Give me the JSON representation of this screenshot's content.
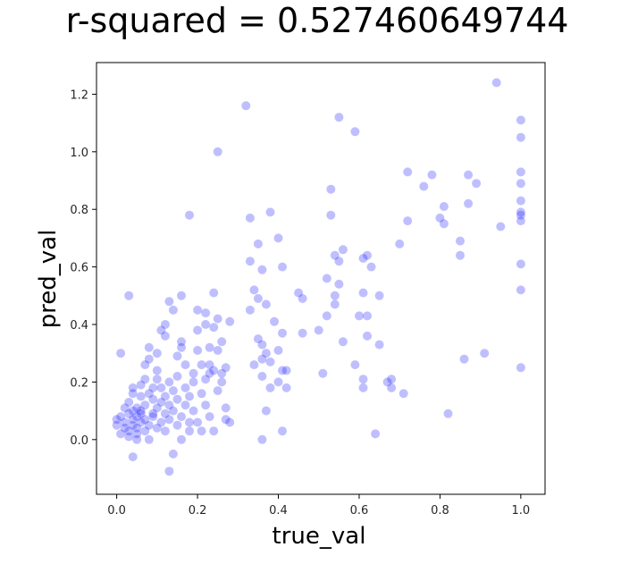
{
  "chart_data": {
    "type": "scatter",
    "title": "r-squared = 0.527460649744",
    "xlabel": "true_val",
    "ylabel": "pred_val",
    "xlim": [
      -0.05,
      1.06
    ],
    "ylim": [
      -0.19,
      1.31
    ],
    "xticks": [
      0.0,
      0.2,
      0.4,
      0.6,
      0.8,
      1.0
    ],
    "xtick_labels": [
      "0.0",
      "0.2",
      "0.4",
      "0.6",
      "0.8",
      "1.0"
    ],
    "yticks": [
      0.0,
      0.2,
      0.4,
      0.6,
      0.8,
      1.0,
      1.2
    ],
    "ytick_labels": [
      "0.0",
      "0.2",
      "0.4",
      "0.6",
      "0.8",
      "1.0",
      "1.2"
    ],
    "grid": false,
    "point_color": "#0000ff",
    "point_alpha": 0.25,
    "series": [
      {
        "points": [
          [
            0.01,
            0.3
          ],
          [
            0.03,
            0.5
          ],
          [
            0.0,
            0.07
          ],
          [
            0.0,
            0.05
          ],
          [
            0.01,
            0.02
          ],
          [
            0.01,
            0.08
          ],
          [
            0.02,
            0.04
          ],
          [
            0.02,
            0.11
          ],
          [
            0.02,
            0.06
          ],
          [
            0.03,
            0.03
          ],
          [
            0.03,
            0.01
          ],
          [
            0.03,
            0.09
          ],
          [
            0.03,
            0.13
          ],
          [
            0.04,
            0.07
          ],
          [
            0.04,
            0.1
          ],
          [
            0.04,
            0.05
          ],
          [
            0.04,
            0.18
          ],
          [
            0.04,
            0.16
          ],
          [
            0.04,
            -0.06
          ],
          [
            0.05,
            0.08
          ],
          [
            0.05,
            0.02
          ],
          [
            0.05,
            0.11
          ],
          [
            0.05,
            0.04
          ],
          [
            0.05,
            0.0
          ],
          [
            0.06,
            0.06
          ],
          [
            0.06,
            0.09
          ],
          [
            0.06,
            0.15
          ],
          [
            0.06,
            0.19
          ],
          [
            0.06,
            0.1
          ],
          [
            0.07,
            0.03
          ],
          [
            0.07,
            0.07
          ],
          [
            0.07,
            0.12
          ],
          [
            0.07,
            0.21
          ],
          [
            0.07,
            0.26
          ],
          [
            0.08,
            0.28
          ],
          [
            0.08,
            0.32
          ],
          [
            0.08,
            0.05
          ],
          [
            0.08,
            0.0
          ],
          [
            0.08,
            0.16
          ],
          [
            0.09,
            0.09
          ],
          [
            0.09,
            0.14
          ],
          [
            0.09,
            0.18
          ],
          [
            0.09,
            0.08
          ],
          [
            0.1,
            0.11
          ],
          [
            0.1,
            0.21
          ],
          [
            0.1,
            0.24
          ],
          [
            0.1,
            0.04
          ],
          [
            0.1,
            0.3
          ],
          [
            0.11,
            0.06
          ],
          [
            0.11,
            0.13
          ],
          [
            0.11,
            0.18
          ],
          [
            0.11,
            0.38
          ],
          [
            0.12,
            0.36
          ],
          [
            0.12,
            0.4
          ],
          [
            0.12,
            0.09
          ],
          [
            0.12,
            0.15
          ],
          [
            0.12,
            0.03
          ],
          [
            0.13,
            0.48
          ],
          [
            0.13,
            0.2
          ],
          [
            0.13,
            0.12
          ],
          [
            0.13,
            -0.11
          ],
          [
            0.13,
            0.07
          ],
          [
            0.14,
            0.45
          ],
          [
            0.14,
            0.17
          ],
          [
            0.14,
            0.1
          ],
          [
            0.14,
            -0.05
          ],
          [
            0.15,
            0.05
          ],
          [
            0.15,
            0.14
          ],
          [
            0.15,
            0.22
          ],
          [
            0.15,
            0.29
          ],
          [
            0.16,
            0.5
          ],
          [
            0.16,
            0.32
          ],
          [
            0.16,
            0.34
          ],
          [
            0.16,
            0.08
          ],
          [
            0.16,
            0.0
          ],
          [
            0.17,
            0.12
          ],
          [
            0.17,
            0.18
          ],
          [
            0.17,
            0.26
          ],
          [
            0.18,
            0.78
          ],
          [
            0.18,
            0.06
          ],
          [
            0.18,
            0.15
          ],
          [
            0.18,
            0.03
          ],
          [
            0.19,
            0.23
          ],
          [
            0.19,
            0.2
          ],
          [
            0.19,
            0.1
          ],
          [
            0.2,
            0.31
          ],
          [
            0.2,
            0.38
          ],
          [
            0.2,
            0.45
          ],
          [
            0.2,
            0.06
          ],
          [
            0.21,
            0.16
          ],
          [
            0.21,
            0.26
          ],
          [
            0.21,
            0.03
          ],
          [
            0.22,
            0.44
          ],
          [
            0.22,
            0.4
          ],
          [
            0.22,
            0.12
          ],
          [
            0.22,
            0.21
          ],
          [
            0.23,
            0.32
          ],
          [
            0.23,
            0.26
          ],
          [
            0.23,
            0.08
          ],
          [
            0.23,
            0.23
          ],
          [
            0.24,
            0.51
          ],
          [
            0.24,
            0.39
          ],
          [
            0.24,
            0.24
          ],
          [
            0.24,
            0.03
          ],
          [
            0.25,
            1.0
          ],
          [
            0.25,
            0.42
          ],
          [
            0.25,
            0.31
          ],
          [
            0.25,
            0.17
          ],
          [
            0.26,
            0.34
          ],
          [
            0.26,
            0.2
          ],
          [
            0.26,
            0.23
          ],
          [
            0.27,
            0.11
          ],
          [
            0.27,
            0.25
          ],
          [
            0.27,
            0.07
          ],
          [
            0.28,
            0.41
          ],
          [
            0.28,
            0.06
          ],
          [
            0.32,
            1.16
          ],
          [
            0.33,
            0.77
          ],
          [
            0.33,
            0.62
          ],
          [
            0.33,
            0.45
          ],
          [
            0.34,
            0.52
          ],
          [
            0.34,
            0.26
          ],
          [
            0.35,
            0.68
          ],
          [
            0.35,
            0.49
          ],
          [
            0.35,
            0.35
          ],
          [
            0.36,
            0.59
          ],
          [
            0.36,
            0.33
          ],
          [
            0.36,
            0.22
          ],
          [
            0.36,
            0.28
          ],
          [
            0.36,
            0.0
          ],
          [
            0.37,
            0.47
          ],
          [
            0.37,
            0.3
          ],
          [
            0.37,
            0.1
          ],
          [
            0.38,
            0.79
          ],
          [
            0.38,
            0.27
          ],
          [
            0.38,
            0.18
          ],
          [
            0.39,
            0.41
          ],
          [
            0.4,
            0.7
          ],
          [
            0.4,
            0.2
          ],
          [
            0.4,
            0.31
          ],
          [
            0.41,
            0.6
          ],
          [
            0.41,
            0.37
          ],
          [
            0.41,
            0.24
          ],
          [
            0.41,
            0.03
          ],
          [
            0.42,
            0.18
          ],
          [
            0.42,
            0.24
          ],
          [
            0.45,
            0.51
          ],
          [
            0.46,
            0.49
          ],
          [
            0.46,
            0.37
          ],
          [
            0.5,
            0.38
          ],
          [
            0.51,
            0.23
          ],
          [
            0.52,
            0.56
          ],
          [
            0.52,
            0.43
          ],
          [
            0.53,
            0.87
          ],
          [
            0.53,
            0.78
          ],
          [
            0.54,
            0.64
          ],
          [
            0.54,
            0.5
          ],
          [
            0.54,
            0.47
          ],
          [
            0.55,
            1.12
          ],
          [
            0.55,
            0.62
          ],
          [
            0.55,
            0.54
          ],
          [
            0.56,
            0.66
          ],
          [
            0.56,
            0.34
          ],
          [
            0.59,
            1.07
          ],
          [
            0.59,
            0.26
          ],
          [
            0.6,
            0.43
          ],
          [
            0.61,
            0.63
          ],
          [
            0.61,
            0.51
          ],
          [
            0.61,
            0.21
          ],
          [
            0.61,
            0.18
          ],
          [
            0.62,
            0.43
          ],
          [
            0.62,
            0.64
          ],
          [
            0.62,
            0.36
          ],
          [
            0.63,
            0.6
          ],
          [
            0.64,
            0.02
          ],
          [
            0.65,
            0.33
          ],
          [
            0.65,
            0.5
          ],
          [
            0.67,
            0.2
          ],
          [
            0.68,
            0.21
          ],
          [
            0.68,
            0.18
          ],
          [
            0.7,
            0.68
          ],
          [
            0.71,
            0.16
          ],
          [
            0.72,
            0.93
          ],
          [
            0.72,
            0.76
          ],
          [
            0.76,
            0.88
          ],
          [
            0.78,
            0.92
          ],
          [
            0.8,
            0.77
          ],
          [
            0.81,
            0.81
          ],
          [
            0.81,
            0.75
          ],
          [
            0.82,
            0.09
          ],
          [
            0.85,
            0.69
          ],
          [
            0.85,
            0.64
          ],
          [
            0.86,
            0.28
          ],
          [
            0.87,
            0.92
          ],
          [
            0.87,
            0.82
          ],
          [
            0.89,
            0.89
          ],
          [
            0.91,
            0.3
          ],
          [
            0.94,
            1.24
          ],
          [
            0.95,
            0.74
          ],
          [
            1.0,
            1.11
          ],
          [
            1.0,
            1.05
          ],
          [
            1.0,
            0.93
          ],
          [
            1.0,
            0.89
          ],
          [
            1.0,
            0.83
          ],
          [
            1.0,
            0.79
          ],
          [
            1.0,
            0.78
          ],
          [
            1.0,
            0.76
          ],
          [
            1.0,
            0.61
          ],
          [
            1.0,
            0.52
          ],
          [
            1.0,
            0.25
          ]
        ]
      }
    ]
  }
}
